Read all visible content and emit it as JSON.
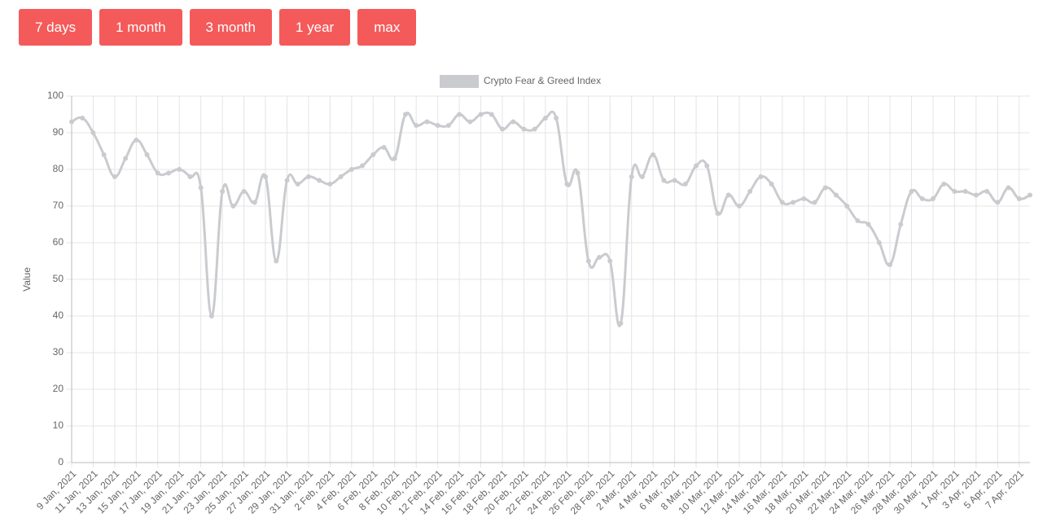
{
  "buttons": [
    "7 days",
    "1 month",
    "3 month",
    "1 year",
    "max"
  ],
  "chart_data": {
    "type": "line",
    "y_label": "Value",
    "grid": true,
    "legend": "top",
    "categories": [
      "9 Jan, 2021",
      null,
      "11 Jan, 2021",
      null,
      "13 Jan, 2021",
      null,
      "15 Jan, 2021",
      null,
      "17 Jan, 2021",
      null,
      "19 Jan, 2021",
      null,
      "21 Jan, 2021",
      null,
      "23 Jan, 2021",
      null,
      "25 Jan, 2021",
      null,
      "27 Jan, 2021",
      null,
      "29 Jan, 2021",
      null,
      "31 Jan, 2021",
      null,
      "2 Feb, 2021",
      null,
      "4 Feb, 2021",
      null,
      "6 Feb, 2021",
      null,
      "8 Feb, 2021",
      null,
      "10 Feb, 2021",
      null,
      "12 Feb, 2021",
      null,
      "14 Feb, 2021",
      null,
      "16 Feb, 2021",
      null,
      "18 Feb, 2021",
      null,
      "20 Feb, 2021",
      null,
      "22 Feb, 2021",
      null,
      "24 Feb, 2021",
      null,
      "26 Feb, 2021",
      null,
      "28 Feb, 2021",
      null,
      "2 Mar, 2021",
      null,
      "4 Mar, 2021",
      null,
      "6 Mar, 2021",
      null,
      "8 Mar, 2021",
      null,
      "10 Mar, 2021",
      null,
      "12 Mar, 2021",
      null,
      "14 Mar, 2021",
      null,
      "16 Mar, 2021",
      null,
      "18 Mar, 2021",
      null,
      "20 Mar, 2021",
      null,
      "22 Mar, 2021",
      null,
      "24 Mar, 2021",
      null,
      "26 Mar, 2021",
      null,
      "28 Mar, 2021",
      null,
      "30 Mar, 2021",
      null,
      "1 Apr, 2021",
      null,
      "3 Apr, 2021",
      null,
      "5 Apr, 2021",
      null,
      "7 Apr, 2021",
      null
    ],
    "series": [
      {
        "name": "Crypto Fear & Greed Index",
        "color": "#c9cbcf",
        "values": [
          93,
          94,
          90,
          84,
          78,
          83,
          88,
          84,
          79,
          79,
          80,
          78,
          75,
          40,
          74,
          70,
          74,
          71,
          78,
          55,
          77,
          76,
          78,
          77,
          76,
          78,
          80,
          81,
          84,
          86,
          83,
          95,
          92,
          93,
          92,
          92,
          95,
          93,
          95,
          95,
          91,
          93,
          91,
          91,
          94,
          94,
          76,
          79,
          55,
          56,
          55,
          38,
          78,
          78,
          84,
          77,
          77,
          76,
          81,
          81,
          68,
          73,
          70,
          74,
          78,
          76,
          71,
          71,
          72,
          71,
          75,
          73,
          70,
          66,
          65,
          60,
          54,
          65,
          74,
          72,
          72,
          76,
          74,
          74,
          73,
          74,
          71,
          75,
          72,
          73
        ]
      }
    ],
    "ylim": [
      0,
      100
    ],
    "yticks": [
      0,
      10,
      20,
      30,
      40,
      50,
      60,
      70,
      80,
      90,
      100
    ]
  }
}
